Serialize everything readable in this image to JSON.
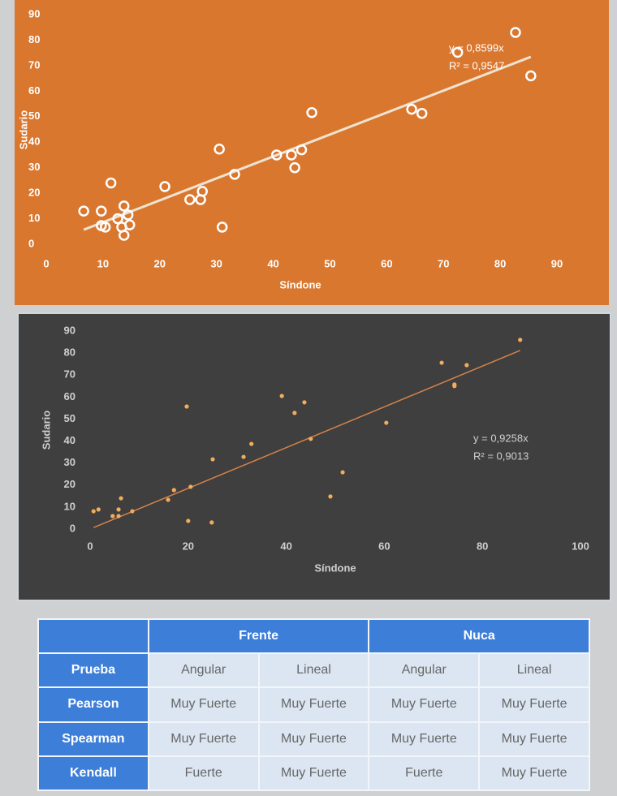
{
  "chart_data": [
    {
      "type": "scatter",
      "x_label": "Síndone",
      "y_label": "Sudario",
      "annotations": [
        "y = 0,8599x",
        "R² = 0,9547"
      ],
      "trendline_slope": 0.8599,
      "color": "#ffffff",
      "trendline_color": "#efe3d0",
      "background": "#d9772f",
      "text_color": "#ffffff",
      "x": [
        6.6,
        9.7,
        9.7,
        10.4,
        11.4,
        12.6,
        13.3,
        13.7,
        14.4,
        14.7,
        13.7,
        20.9,
        25.3,
        27.2,
        27.5,
        30.5,
        31,
        33.2,
        40.6,
        43.2,
        43.8,
        45,
        46.8,
        64.4,
        66.2,
        72.5,
        82.7,
        85.4
      ],
      "values": [
        13,
        13,
        7.3,
        6.7,
        24,
        10,
        6.7,
        15,
        11.5,
        7.6,
        3.5,
        22.6,
        17.5,
        17.5,
        20.7,
        37.3,
        6.7,
        27.4,
        35,
        35,
        30,
        37,
        51.6,
        52.9,
        51.3,
        75.2,
        83,
        66
      ],
      "xlim": [
        0,
        90
      ],
      "xticks": [
        0,
        10,
        20,
        30,
        40,
        50,
        60,
        70,
        80,
        90
      ],
      "ylim": [
        0,
        90
      ],
      "yticks": [
        0,
        10,
        20,
        30,
        40,
        50,
        60,
        70,
        80,
        90
      ]
    },
    {
      "type": "scatter",
      "x_label": "Síndone",
      "y_label": "Sudario",
      "annotations": [
        "y = 0,9258x",
        "R² = 0,9013"
      ],
      "trendline_slope": 0.9258,
      "color": "#f2ac5c",
      "trendline_color": "#d5824a",
      "background": "#3f3f3f",
      "text_color": "#cfcfcf",
      "x": [
        0.7,
        1.7,
        4.6,
        5.8,
        5.8,
        6.3,
        8.6,
        15.9,
        17.1,
        20.5,
        19.7,
        20.0,
        24.8,
        25,
        31.3,
        32.9,
        39.1,
        41.7,
        43.7,
        45,
        49,
        51.5,
        60.4,
        71.7,
        74.3,
        74.3,
        76.8,
        87.7
      ],
      "values": [
        8.1,
        8.9,
        5.9,
        5.9,
        8.9,
        14,
        8.1,
        13.3,
        17.7,
        19.2,
        55.7,
        3.7,
        3,
        31.7,
        32.8,
        38.7,
        60.5,
        52.8,
        57.6,
        41,
        14.8,
        25.8,
        48.3,
        75.6,
        65.7,
        65,
        74.5,
        86
      ],
      "xlim": [
        0,
        100
      ],
      "xticks": [
        0,
        20,
        40,
        60,
        80,
        100
      ],
      "ylim": [
        0,
        90
      ],
      "yticks": [
        0,
        10,
        20,
        30,
        40,
        50,
        60,
        70,
        80,
        90
      ]
    }
  ],
  "table": {
    "header": [
      "Frente",
      "Nuca"
    ],
    "rows": [
      [
        "Prueba",
        "Angular",
        "Lineal",
        "Angular",
        "Lineal"
      ],
      [
        "Pearson",
        "Muy Fuerte",
        "Muy Fuerte",
        "Muy Fuerte",
        "Muy Fuerte"
      ],
      [
        "Spearman",
        "Muy Fuerte",
        "Muy Fuerte",
        "Muy Fuerte",
        "Muy Fuerte"
      ],
      [
        "Kendall",
        "Fuerte",
        "Muy Fuerte",
        "Fuerte",
        "Muy Fuerte"
      ]
    ]
  }
}
